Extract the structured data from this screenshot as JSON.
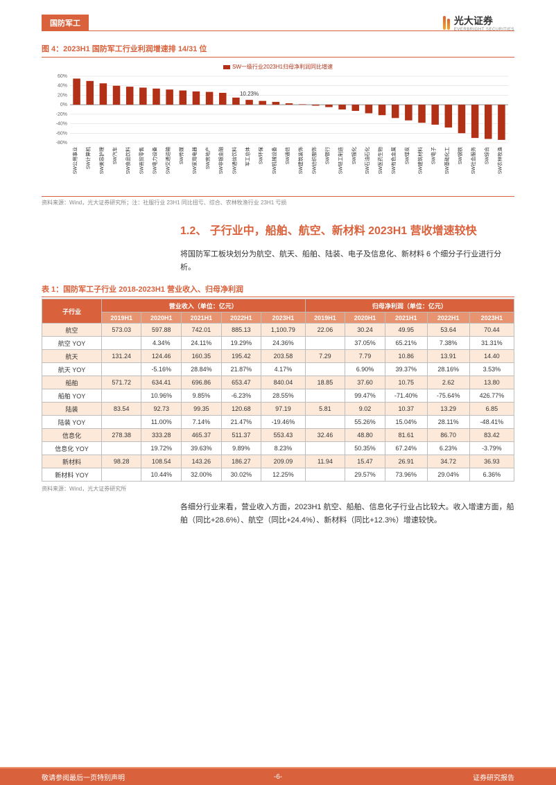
{
  "header": {
    "tag": "国防军工",
    "logo_text": "光大证券",
    "logo_sub": "EVERBRIGHT SECURITIES"
  },
  "figure4": {
    "title": "图 4：2023H1 国防军工行业利润增速排 14/31 位",
    "legend": "SW一级行业2023H1归母净利润同比增速",
    "type": "bar",
    "callout": "10.23%",
    "callout_index": 13,
    "bar_color": "#b23016",
    "grid_color": "#cccccc",
    "axis_color": "#666666",
    "y_ticks": [
      -80,
      -60,
      -40,
      -20,
      0,
      20,
      40,
      60
    ],
    "ylim": [
      -80,
      60
    ],
    "categories": [
      "SW公用事业",
      "SW计算机",
      "SW美容护理",
      "SW汽车",
      "SW食品饮料",
      "SW商贸零售",
      "SW电力设备",
      "SW交通运输",
      "SW传媒",
      "SW家用电器",
      "SW房地产",
      "SW非银金融",
      "SW通信饮料",
      "军工总体",
      "SW环保",
      "SW机械设备",
      "SW通信",
      "SW建筑装饰",
      "SW纺织服饰",
      "SW银行",
      "SW轻工制造",
      "SW报化",
      "SW石油石化",
      "SW医药生物",
      "SW有色金属",
      "SW煤炭",
      "SW建筑材料",
      "SW电子",
      "SW基础化工",
      "SW钢铁",
      "SW社会服务",
      "SW综合",
      "SW农林牧渔"
    ],
    "values": [
      55,
      50,
      45,
      40,
      38,
      36,
      34,
      32,
      30,
      28,
      27,
      25,
      15,
      10.23,
      8,
      6,
      3,
      1,
      -2,
      -5,
      -10,
      -13,
      -18,
      -22,
      -28,
      -33,
      -38,
      -42,
      -48,
      -60,
      -70,
      -72,
      -74
    ],
    "source": "资料来源：Wind，光大证券研究所；注：社服行业 23H1 同比扭亏、综合、农林牧渔行业 23H1 亏损"
  },
  "section12": {
    "heading": "1.2、 子行业中，船舶、航空、新材料 2023H1 营收增速较快",
    "para1": "将国防军工板块划分为航空、航天、船舶、陆装、电子及信息化、新材料 6 个细分子行业进行分析。"
  },
  "table1": {
    "title": "表 1：国防军工子行业 2018-2023H1 营业收入、归母净利润",
    "col_corner": "子行业",
    "group1": "营业收入（单位：亿元）",
    "group2": "归母净利润（单位：亿元）",
    "years": [
      "2019H1",
      "2020H1",
      "2021H1",
      "2022H1",
      "2023H1",
      "2019H1",
      "2020H1",
      "2021H1",
      "2022H1",
      "2023H1"
    ],
    "rows": [
      {
        "label": "航空",
        "shade": true,
        "cells": [
          "573.03",
          "597.88",
          "742.01",
          "885.13",
          "1,100.79",
          "22.06",
          "30.24",
          "49.95",
          "53.64",
          "70.44"
        ]
      },
      {
        "label": "航空 YOY",
        "shade": false,
        "cells": [
          "",
          "4.34%",
          "24.11%",
          "19.29%",
          "24.36%",
          "",
          "37.05%",
          "65.21%",
          "7.38%",
          "31.31%"
        ]
      },
      {
        "label": "航天",
        "shade": true,
        "cells": [
          "131.24",
          "124.46",
          "160.35",
          "195.42",
          "203.58",
          "7.29",
          "7.79",
          "10.86",
          "13.91",
          "14.40"
        ]
      },
      {
        "label": "航天 YOY",
        "shade": false,
        "cells": [
          "",
          "-5.16%",
          "28.84%",
          "21.87%",
          "4.17%",
          "",
          "6.90%",
          "39.37%",
          "28.16%",
          "3.53%"
        ]
      },
      {
        "label": "船舶",
        "shade": true,
        "cells": [
          "571.72",
          "634.41",
          "696.86",
          "653.47",
          "840.04",
          "18.85",
          "37.60",
          "10.75",
          "2.62",
          "13.80"
        ]
      },
      {
        "label": "船舶 YOY",
        "shade": false,
        "cells": [
          "",
          "10.96%",
          "9.85%",
          "-6.23%",
          "28.55%",
          "",
          "99.47%",
          "-71.40%",
          "-75.64%",
          "426.77%"
        ]
      },
      {
        "label": "陆装",
        "shade": true,
        "cells": [
          "83.54",
          "92.73",
          "99.35",
          "120.68",
          "97.19",
          "5.81",
          "9.02",
          "10.37",
          "13.29",
          "6.85"
        ]
      },
      {
        "label": "陆装 YOY",
        "shade": false,
        "cells": [
          "",
          "11.00%",
          "7.14%",
          "21.47%",
          "-19.46%",
          "",
          "55.26%",
          "15.04%",
          "28.11%",
          "-48.41%"
        ]
      },
      {
        "label": "信息化",
        "shade": true,
        "cells": [
          "278.38",
          "333.28",
          "465.37",
          "511.37",
          "553.43",
          "32.46",
          "48.80",
          "81.61",
          "86.70",
          "83.42"
        ]
      },
      {
        "label": "信息化 YOY",
        "shade": false,
        "cells": [
          "",
          "19.72%",
          "39.63%",
          "9.89%",
          "8.23%",
          "",
          "50.35%",
          "67.24%",
          "6.23%",
          "-3.79%"
        ]
      },
      {
        "label": "新材料",
        "shade": true,
        "cells": [
          "98.28",
          "108.54",
          "143.26",
          "186.27",
          "209.09",
          "11.94",
          "15.47",
          "26.91",
          "34.72",
          "36.93"
        ]
      },
      {
        "label": "新材料 YOY",
        "shade": false,
        "cells": [
          "",
          "10.44%",
          "32.00%",
          "30.02%",
          "12.25%",
          "",
          "29.57%",
          "73.96%",
          "29.04%",
          "6.36%"
        ]
      }
    ],
    "source": "资料来源：Wind，光大证券研究所"
  },
  "para2": "各细分行业来看，营业收入方面，2023H1 航空、船舶、信息化子行业占比较大。收入增速方面，船舶（同比+28.6%）、航空（同比+24.4%）、新材料（同比+12.3%）增速较快。",
  "footer": {
    "left": "敬请参阅最后一页特别声明",
    "center": "-6-",
    "right": "证券研究报告"
  }
}
